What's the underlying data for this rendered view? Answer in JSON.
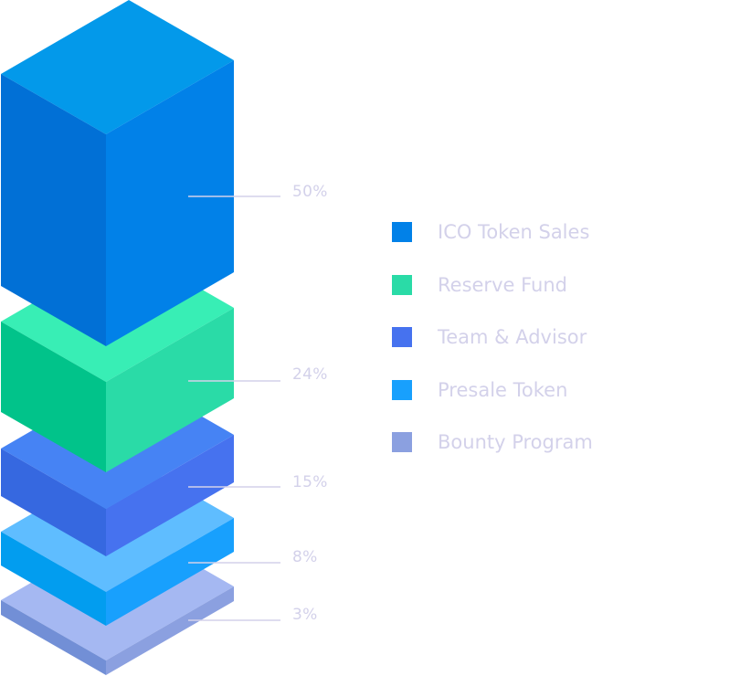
{
  "chart_data": {
    "type": "isometric-stacked-blocks",
    "categories": [
      "ICO Token Sales",
      "Reserve Fund",
      "Team & Advisor",
      "Presale Token",
      "Bounty Program"
    ],
    "values": [
      50,
      24,
      15,
      8,
      3
    ],
    "value_labels": [
      "50%",
      "24%",
      "15%",
      "8%",
      "3%"
    ],
    "legend_position": "right",
    "colors": [
      "#0181e8",
      "#2adba7",
      "#4672ef",
      "#18a0fd",
      "#8ba0e0"
    ],
    "face_colors": [
      {
        "top": "#0399ea",
        "left": "#0170d6",
        "right": "#0181e8"
      },
      {
        "top": "#38eeb5",
        "left": "#01c38a",
        "right": "#2adba7"
      },
      {
        "top": "#4683f4",
        "left": "#3668e0",
        "right": "#4672ef"
      },
      {
        "top": "#5fbdff",
        "left": "#029def",
        "right": "#18a0fd"
      },
      {
        "top": "#a5b8f2",
        "left": "#728fd6",
        "right": "#8ba0e0"
      }
    ],
    "label_color": "#d3d1ea",
    "leader_line_color": "#d3d1ea"
  }
}
